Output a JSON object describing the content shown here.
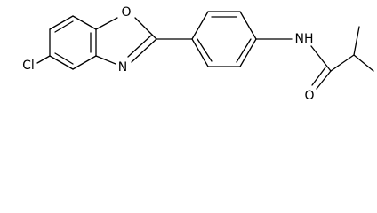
{
  "atoms": [
    "Cl",
    "O",
    "N",
    "NH",
    "O"
  ]
}
